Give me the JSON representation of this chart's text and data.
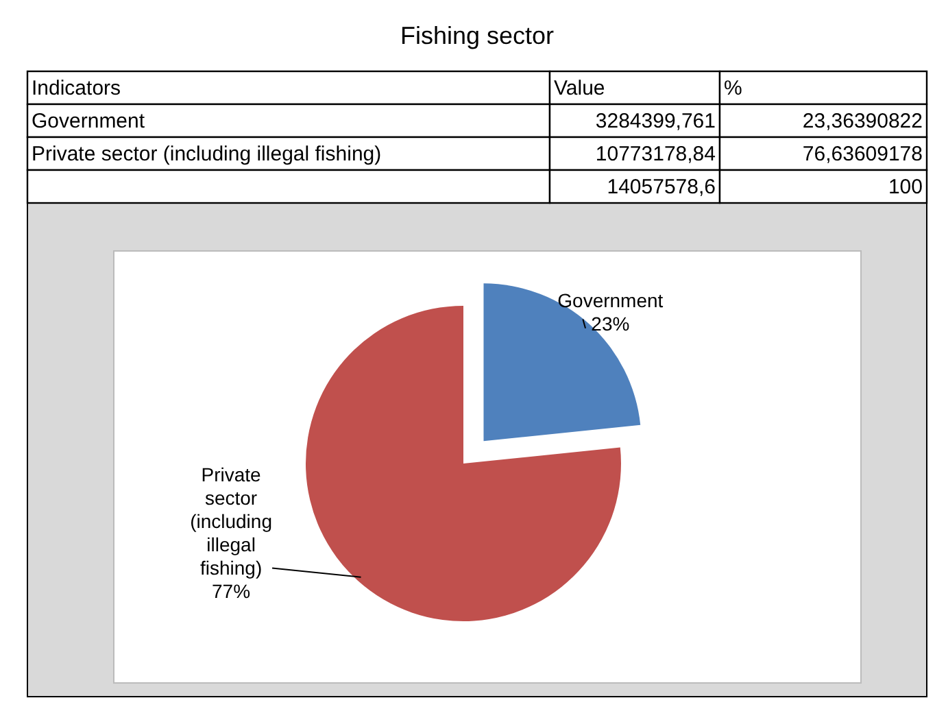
{
  "chart_data": {
    "type": "pie",
    "title": "Fishing sector",
    "categories": [
      "Government",
      "Private sector (including illegal fishing)"
    ],
    "values": [
      23.36390822,
      76.63609178
    ],
    "colors": [
      "#4f81bd",
      "#c0504d"
    ],
    "value_labels": [
      "23%",
      "77%"
    ],
    "annotations": [
      "Indicators",
      "Value",
      "%",
      "3284399,761",
      "23,36390822",
      "10773178,84",
      "76,63609178",
      "14057578,6",
      "100"
    ]
  }
}
